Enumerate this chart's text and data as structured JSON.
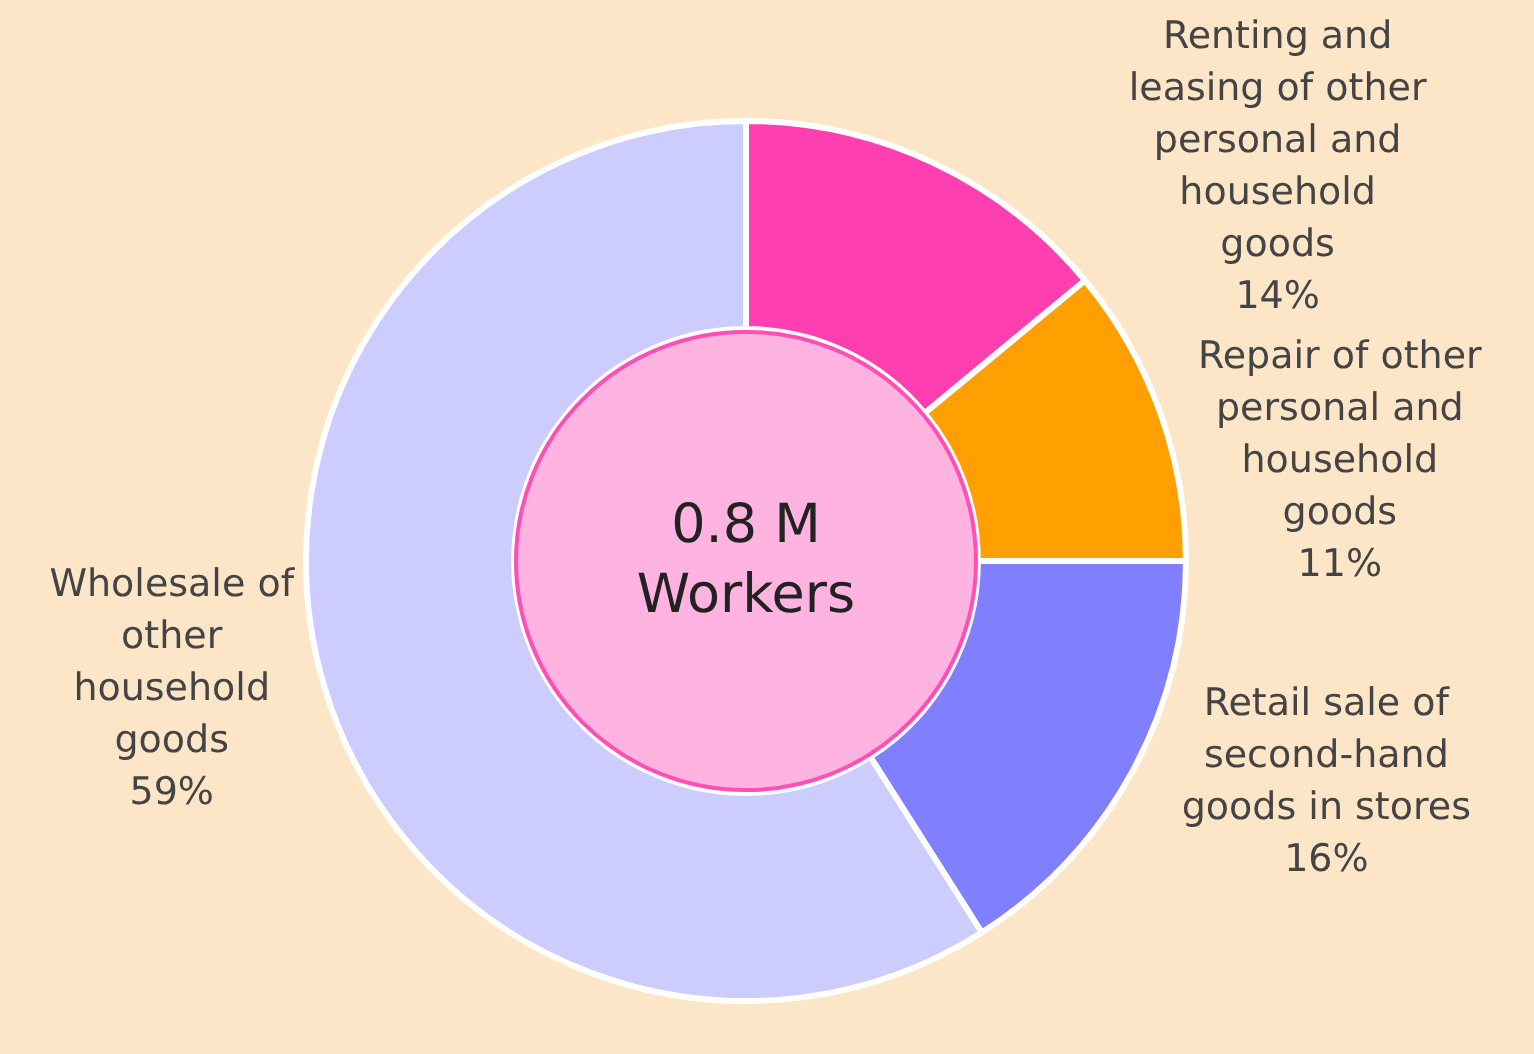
{
  "chart_data": {
    "type": "donut",
    "categories": [
      "Renting and leasing of other personal and household goods",
      "Repair of other personal and household goods",
      "Retail sale of second-hand goods in stores",
      "Wholesale of other household goods"
    ],
    "values": [
      14,
      11,
      16,
      59
    ],
    "colors": [
      "#ff3fb0",
      "#ff9f00",
      "#8080ff",
      "#ccccff"
    ],
    "annotations": [
      "0.8 M Workers"
    ],
    "value_labels": [
      "14%",
      "11%",
      "16%",
      "59%"
    ],
    "legend": false
  }
}
